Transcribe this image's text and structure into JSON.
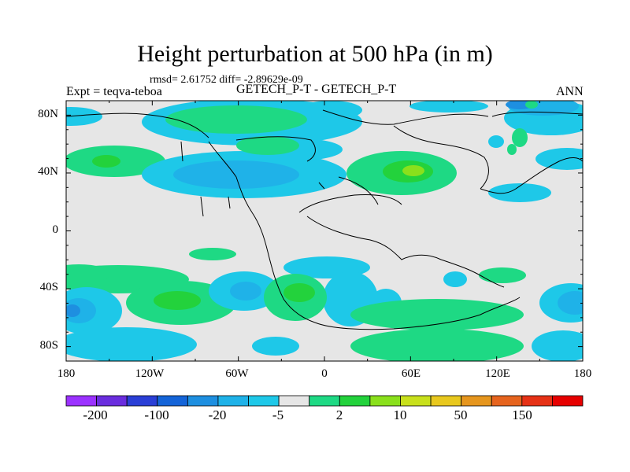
{
  "title": "Height perturbation at 500 hPa (in m)",
  "stats": "rmsd= 2.61752 diff= -2.89629e-09",
  "expt_label": "Expt = teqva-teboa",
  "center_title": "GETECH_P-T - GETECH_P-T",
  "season": "ANN",
  "lat_ticks": [
    "80N",
    "40N",
    "0",
    "40S",
    "80S"
  ],
  "lon_ticks": [
    "180",
    "120W",
    "60W",
    "0",
    "60E",
    "120E",
    "180"
  ],
  "colorbar": {
    "colors": [
      "#9b32ff",
      "#6a2dde",
      "#2a3fd6",
      "#1464d8",
      "#1e8fe0",
      "#1fb2e8",
      "#1ec8e8",
      "#e6e6e6",
      "#1ed984",
      "#23d23c",
      "#8ae01c",
      "#c8e01c",
      "#e8c81e",
      "#e6961e",
      "#e6641e",
      "#e63216",
      "#e60000"
    ],
    "labels": [
      "-200",
      "-100",
      "-20",
      "-5",
      "2",
      "10",
      "50",
      "150"
    ]
  },
  "map_colors": {
    "background": "#e6e6e6",
    "cyan": "#1ec8e8",
    "light_blue": "#1fb2e8",
    "blue": "#1e8fe0",
    "dark_blue": "#1464d8",
    "green": "#1ed984",
    "green2": "#23d23c",
    "yellow_green": "#8ae01c",
    "coast": "#000000"
  }
}
